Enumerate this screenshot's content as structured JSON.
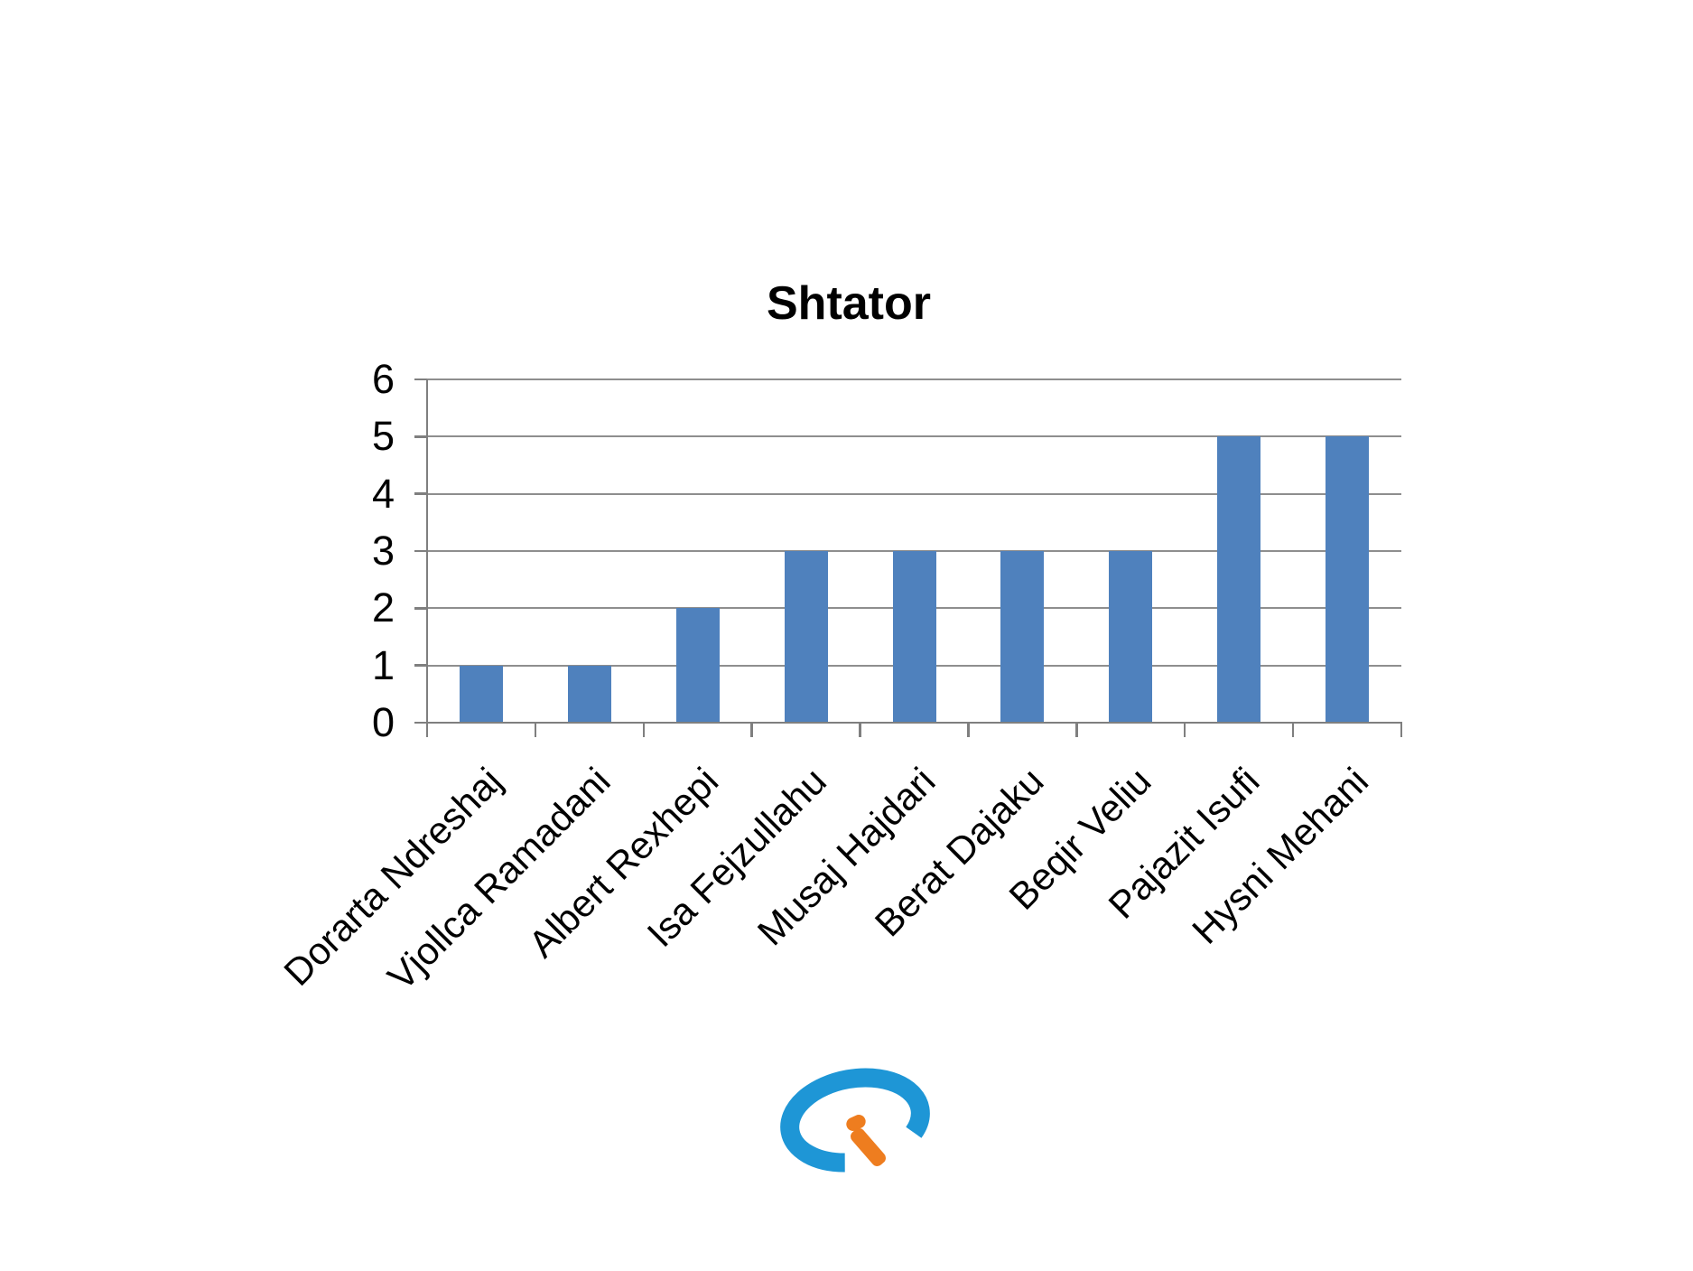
{
  "chart_data": {
    "type": "bar",
    "title": "Shtator",
    "categories": [
      "Dorarta Ndreshaj",
      "Vjollca Ramadani",
      "Albert Rexhepi",
      "Isa Fejzullahu",
      "Musaj Hajdari",
      "Berat Dajaku",
      "Beqir Veliu",
      "Pajazit Isufi",
      "Hysni Mehani"
    ],
    "values": [
      1,
      1,
      2,
      3,
      3,
      3,
      3,
      5,
      5
    ],
    "xlabel": "",
    "ylabel": "",
    "ylim": [
      0,
      6
    ],
    "yticks": [
      0,
      1,
      2,
      3,
      4,
      5,
      6
    ],
    "grid": true,
    "legend_position": "none",
    "x_label_rotation_deg": -45,
    "bar_color": "#4F81BD",
    "gridline_color": "#8E8E8E",
    "axis_color": "#7F7F7F",
    "text_color": "#000000"
  },
  "logo": {
    "description": "blue open ring with tilted orange letter i",
    "ring_color": "#1E96D6",
    "i_color": "#EE7D1F"
  }
}
